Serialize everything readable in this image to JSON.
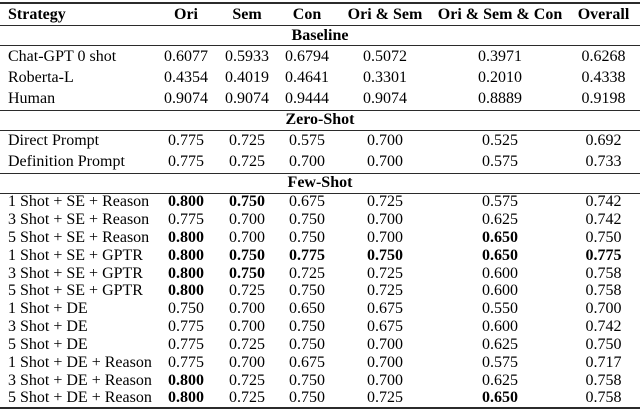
{
  "table": {
    "columns": [
      "Strategy",
      "Ori",
      "Sem",
      "Con",
      "Ori & Sem",
      "Ori & Sem & Con",
      "Overall"
    ],
    "sections": [
      {
        "title": "Baseline",
        "rows": [
          {
            "strategy": "Chat-GPT 0 shot",
            "values": [
              "0.6077",
              "0.5933",
              "0.6794",
              "0.5072",
              "0.3971",
              "0.6268"
            ],
            "bold": [
              false,
              false,
              false,
              false,
              false,
              false
            ]
          },
          {
            "strategy": "Roberta-L",
            "values": [
              "0.4354",
              "0.4019",
              "0.4641",
              "0.3301",
              "0.2010",
              "0.4338"
            ],
            "bold": [
              false,
              false,
              false,
              false,
              false,
              false
            ]
          },
          {
            "strategy": "Human",
            "values": [
              "0.9074",
              "0.9074",
              "0.9444",
              "0.9074",
              "0.8889",
              "0.9198"
            ],
            "bold": [
              false,
              false,
              false,
              false,
              false,
              false
            ]
          }
        ]
      },
      {
        "title": "Zero-Shot",
        "rows": [
          {
            "strategy": "Direct Prompt",
            "values": [
              "0.775",
              "0.725",
              "0.575",
              "0.700",
              "0.525",
              "0.692"
            ],
            "bold": [
              false,
              false,
              false,
              false,
              false,
              false
            ]
          },
          {
            "strategy": "Definition Prompt",
            "values": [
              "0.775",
              "0.725",
              "0.700",
              "0.700",
              "0.575",
              "0.733"
            ],
            "bold": [
              false,
              false,
              false,
              false,
              false,
              false
            ]
          }
        ]
      },
      {
        "title": "Few-Shot",
        "rows": [
          {
            "strategy": "1 Shot + SE + Reason",
            "values": [
              "0.800",
              "0.750",
              "0.675",
              "0.725",
              "0.575",
              "0.742"
            ],
            "bold": [
              true,
              true,
              false,
              false,
              false,
              false
            ]
          },
          {
            "strategy": "3 Shot + SE + Reason",
            "values": [
              "0.775",
              "0.700",
              "0.750",
              "0.700",
              "0.625",
              "0.742"
            ],
            "bold": [
              false,
              false,
              false,
              false,
              false,
              false
            ]
          },
          {
            "strategy": "5 Shot + SE + Reason",
            "values": [
              "0.800",
              "0.700",
              "0.750",
              "0.700",
              "0.650",
              "0.750"
            ],
            "bold": [
              true,
              false,
              false,
              false,
              true,
              false
            ]
          },
          {
            "strategy": "1 Shot + SE + GPTR",
            "values": [
              "0.800",
              "0.750",
              "0.775",
              "0.750",
              "0.650",
              "0.775"
            ],
            "bold": [
              true,
              true,
              true,
              true,
              true,
              true
            ]
          },
          {
            "strategy": "3 Shot + SE + GPTR",
            "values": [
              "0.800",
              "0.750",
              "0.725",
              "0.725",
              "0.600",
              "0.758"
            ],
            "bold": [
              true,
              true,
              false,
              false,
              false,
              false
            ]
          },
          {
            "strategy": "5 Shot + SE + GPTR",
            "values": [
              "0.800",
              "0.725",
              "0.750",
              "0.725",
              "0.600",
              "0.758"
            ],
            "bold": [
              true,
              false,
              false,
              false,
              false,
              false
            ]
          },
          {
            "strategy": "1 Shot + DE",
            "values": [
              "0.750",
              "0.700",
              "0.650",
              "0.675",
              "0.550",
              "0.700"
            ],
            "bold": [
              false,
              false,
              false,
              false,
              false,
              false
            ]
          },
          {
            "strategy": "3 Shot + DE",
            "values": [
              "0.775",
              "0.700",
              "0.750",
              "0.675",
              "0.600",
              "0.742"
            ],
            "bold": [
              false,
              false,
              false,
              false,
              false,
              false
            ]
          },
          {
            "strategy": "5 Shot + DE",
            "values": [
              "0.775",
              "0.725",
              "0.750",
              "0.700",
              "0.625",
              "0.750"
            ],
            "bold": [
              false,
              false,
              false,
              false,
              false,
              false
            ]
          },
          {
            "strategy": "1 Shot + DE + Reason",
            "values": [
              "0.775",
              "0.700",
              "0.675",
              "0.700",
              "0.575",
              "0.717"
            ],
            "bold": [
              false,
              false,
              false,
              false,
              false,
              false
            ]
          },
          {
            "strategy": "3 Shot + DE + Reason",
            "values": [
              "0.800",
              "0.725",
              "0.750",
              "0.700",
              "0.625",
              "0.758"
            ],
            "bold": [
              true,
              false,
              false,
              false,
              false,
              false
            ]
          },
          {
            "strategy": "5 Shot + DE + Reason",
            "values": [
              "0.800",
              "0.725",
              "0.750",
              "0.725",
              "0.650",
              "0.758"
            ],
            "bold": [
              true,
              false,
              false,
              false,
              true,
              false
            ]
          }
        ]
      }
    ]
  }
}
